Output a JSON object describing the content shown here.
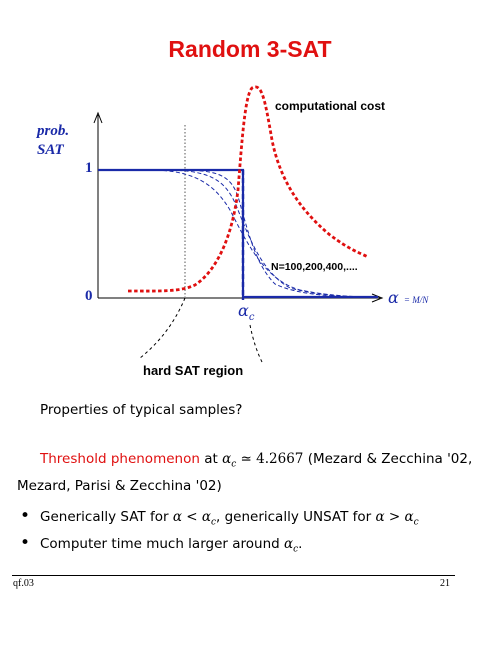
{
  "title": "Random 3-SAT",
  "figure": {
    "y_axis_label_line1": "prob.",
    "y_axis_label_line2": "SAT",
    "y_tick_top": "1",
    "y_tick_bottom": "0",
    "x_axis_symbol": "α",
    "x_axis_subscript": "= M/N",
    "critical_symbol": "α",
    "critical_subscript": "c",
    "cost_label": "computational cost",
    "sizes_label": "N=100,200,400,....",
    "hard_region_label": "hard SAT region",
    "colors": {
      "cost_curve": "#e01010",
      "sat_curves": "#1a2aa8",
      "axes": "#000000"
    }
  },
  "question": "Properties of typical samples?",
  "threshold": {
    "term": "Threshold phenomenon",
    "at": "at",
    "alpha_c": "α",
    "alpha_c_sub": "c",
    "approx": "≃ 4.2667",
    "refs_line1": "(Mezard & Zecchina '02,",
    "refs_line2": "Mezard, Parisi & Zecchina '02)"
  },
  "bullets": [
    {
      "part1": "Generically SAT for ",
      "math1": "α < α",
      "sub1": "c",
      "part2": ", generically UNSAT for ",
      "math2": "α > α",
      "sub2": "c"
    },
    {
      "part1": "Computer time much larger around ",
      "math1": "α",
      "sub1": "c",
      "part2": "."
    }
  ],
  "footer": {
    "left": "qf.03",
    "right": "21"
  }
}
